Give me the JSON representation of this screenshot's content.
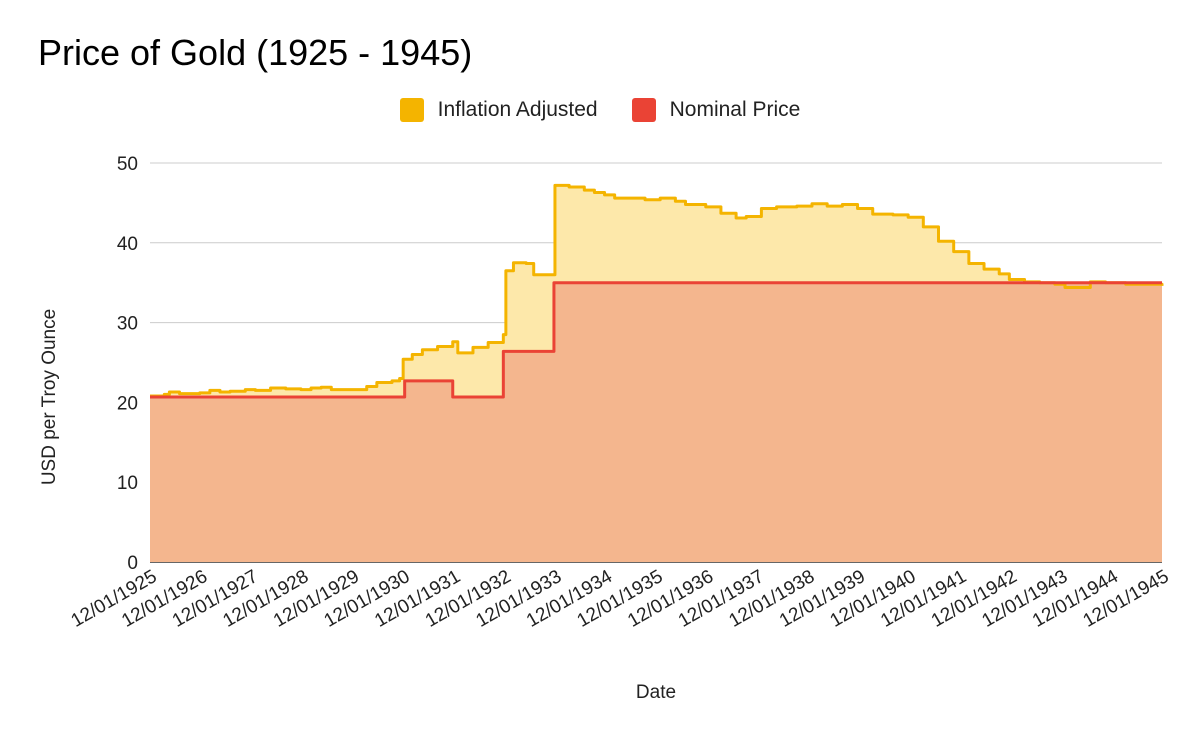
{
  "colors": {
    "inflation_line": "#f4b400",
    "inflation_fill": "#fde8aa",
    "nominal_line": "#ea4335",
    "nominal_fill": "#f4b68e",
    "grid": "#cccccc"
  },
  "chart_data": {
    "type": "area",
    "title": "Price of Gold (1925 - 1945)",
    "xlabel": "Date",
    "ylabel": "USD per Troy Ounce",
    "legend_position": "top",
    "grid": true,
    "xlim": [
      1925.917,
      1945.917
    ],
    "ylim": [
      0,
      50
    ],
    "y_ticks": [
      0,
      10,
      20,
      30,
      40,
      50
    ],
    "x_ticks": [
      "12/01/1925",
      "12/01/1926",
      "12/01/1927",
      "12/01/1928",
      "12/01/1929",
      "12/01/1930",
      "12/01/1931",
      "12/01/1932",
      "12/01/1933",
      "12/01/1934",
      "12/01/1935",
      "12/01/1936",
      "12/01/1937",
      "12/01/1938",
      "12/01/1939",
      "12/01/1940",
      "12/01/1941",
      "12/01/1942",
      "12/01/1943",
      "12/01/1944",
      "12/01/1945"
    ],
    "series": [
      {
        "name": "Inflation Adjusted",
        "points": [
          [
            1925.917,
            20.8
          ],
          [
            1926.2,
            21.0
          ],
          [
            1926.3,
            21.3
          ],
          [
            1926.5,
            21.1
          ],
          [
            1926.9,
            21.2
          ],
          [
            1927.1,
            21.5
          ],
          [
            1927.3,
            21.3
          ],
          [
            1927.5,
            21.4
          ],
          [
            1927.8,
            21.6
          ],
          [
            1928.0,
            21.5
          ],
          [
            1928.3,
            21.8
          ],
          [
            1928.6,
            21.7
          ],
          [
            1928.9,
            21.6
          ],
          [
            1929.1,
            21.8
          ],
          [
            1929.3,
            21.9
          ],
          [
            1929.5,
            21.6
          ],
          [
            1929.9,
            21.6
          ],
          [
            1930.2,
            22.0
          ],
          [
            1930.4,
            22.5
          ],
          [
            1930.7,
            22.7
          ],
          [
            1930.85,
            23.0
          ],
          [
            1930.92,
            25.4
          ],
          [
            1931.1,
            26.0
          ],
          [
            1931.3,
            26.6
          ],
          [
            1931.6,
            27.0
          ],
          [
            1931.9,
            27.6
          ],
          [
            1932.0,
            26.2
          ],
          [
            1932.3,
            26.9
          ],
          [
            1932.6,
            27.5
          ],
          [
            1932.9,
            28.5
          ],
          [
            1932.95,
            36.5
          ],
          [
            1933.1,
            37.5
          ],
          [
            1933.35,
            37.4
          ],
          [
            1933.5,
            36.0
          ],
          [
            1933.85,
            36.0
          ],
          [
            1933.92,
            47.2
          ],
          [
            1934.2,
            47.0
          ],
          [
            1934.5,
            46.6
          ],
          [
            1934.7,
            46.3
          ],
          [
            1934.9,
            46.0
          ],
          [
            1935.1,
            45.6
          ],
          [
            1935.5,
            45.6
          ],
          [
            1935.7,
            45.4
          ],
          [
            1936.0,
            45.6
          ],
          [
            1936.3,
            45.2
          ],
          [
            1936.5,
            44.8
          ],
          [
            1936.9,
            44.5
          ],
          [
            1937.2,
            43.7
          ],
          [
            1937.5,
            43.1
          ],
          [
            1937.7,
            43.3
          ],
          [
            1938.0,
            44.3
          ],
          [
            1938.3,
            44.5
          ],
          [
            1938.7,
            44.6
          ],
          [
            1939.0,
            44.9
          ],
          [
            1939.3,
            44.6
          ],
          [
            1939.6,
            44.8
          ],
          [
            1939.9,
            44.3
          ],
          [
            1940.2,
            43.6
          ],
          [
            1940.6,
            43.5
          ],
          [
            1940.9,
            43.2
          ],
          [
            1941.2,
            42.0
          ],
          [
            1941.5,
            40.2
          ],
          [
            1941.8,
            38.9
          ],
          [
            1942.1,
            37.4
          ],
          [
            1942.4,
            36.7
          ],
          [
            1942.7,
            36.1
          ],
          [
            1942.9,
            35.4
          ],
          [
            1943.2,
            35.1
          ],
          [
            1943.5,
            35.0
          ],
          [
            1943.8,
            34.8
          ],
          [
            1944.0,
            34.4
          ],
          [
            1944.3,
            34.4
          ],
          [
            1944.5,
            35.1
          ],
          [
            1944.8,
            35.0
          ],
          [
            1945.2,
            34.8
          ],
          [
            1945.917,
            34.6
          ]
        ]
      },
      {
        "name": "Nominal Price",
        "points": [
          [
            1925.917,
            20.67
          ],
          [
            1930.92,
            20.67
          ],
          [
            1930.95,
            22.7
          ],
          [
            1931.85,
            22.7
          ],
          [
            1931.9,
            20.67
          ],
          [
            1932.85,
            20.67
          ],
          [
            1932.9,
            26.4
          ],
          [
            1933.85,
            26.4
          ],
          [
            1933.9,
            35.0
          ],
          [
            1945.917,
            35.0
          ]
        ]
      }
    ]
  }
}
